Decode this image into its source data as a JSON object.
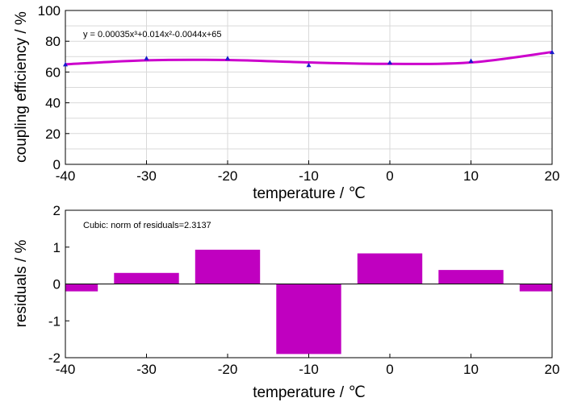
{
  "chart_data": [
    {
      "type": "line",
      "xlabel": "temperature / ℃",
      "ylabel": "coupling efficiency / %",
      "xlim": [
        -40,
        20
      ],
      "ylim": [
        0,
        100
      ],
      "xticks": [
        -40,
        -30,
        -20,
        -10,
        0,
        10,
        20
      ],
      "yticks": [
        0,
        20,
        40,
        60,
        80,
        100
      ],
      "grid": true,
      "equation": "y = 0.00035x³+0.014x²-0.0044x+65",
      "series": [
        {
          "kind": "measured",
          "x": [
            -40,
            -30,
            -20,
            -10,
            0,
            10,
            20
          ],
          "y": [
            65,
            69,
            69,
            64.5,
            66.2,
            67.3,
            73
          ],
          "color": "#1a1acc"
        },
        {
          "kind": "cubic fit",
          "coefficients": [
            0.00035,
            0.014,
            -0.0044,
            65
          ],
          "color": "#cc00cc"
        }
      ]
    },
    {
      "type": "bar",
      "xlabel": "temperature / ℃",
      "ylabel": "residuals / %",
      "xlim": [
        -40,
        20
      ],
      "ylim": [
        -2,
        2
      ],
      "xticks": [
        -40,
        -30,
        -20,
        -10,
        0,
        10,
        20
      ],
      "yticks": [
        -2,
        -1,
        0,
        1,
        2
      ],
      "grid": false,
      "annotation": "Cubic: norm of residuals=2.3137",
      "x": [
        -40,
        -30,
        -20,
        -10,
        0,
        10,
        20
      ],
      "values": [
        -0.2,
        0.3,
        0.93,
        -1.9,
        0.83,
        0.38,
        -0.2
      ],
      "color": "#c000c0"
    }
  ]
}
